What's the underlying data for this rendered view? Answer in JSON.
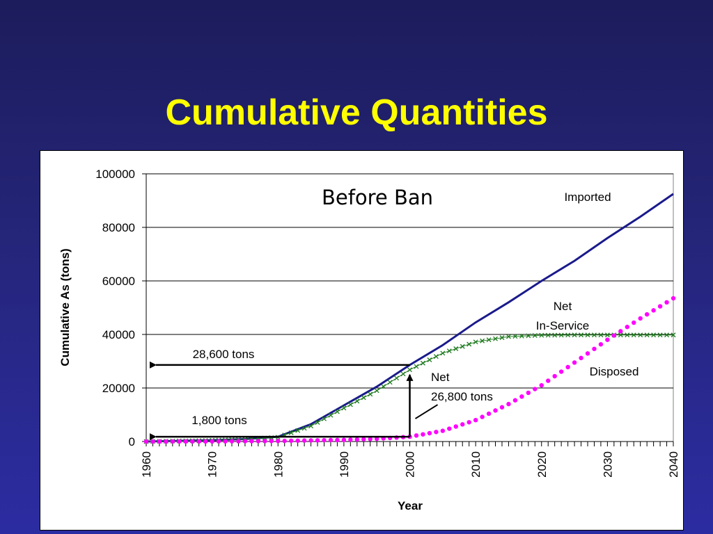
{
  "slide": {
    "title": "Cumulative Quantities"
  },
  "chart_data": {
    "type": "line",
    "title": "Before Ban",
    "xlabel": "Year",
    "ylabel": "Cumulative As (tons)",
    "xlim": [
      1960,
      2040
    ],
    "ylim": [
      0,
      100000
    ],
    "y_ticks": [
      "0",
      "20000",
      "40000",
      "60000",
      "80000",
      "100000"
    ],
    "x_ticks": [
      "1960",
      "1970",
      "1980",
      "1990",
      "2000",
      "2010",
      "2020",
      "2030",
      "2040"
    ],
    "grid": "horizontal",
    "colors": {
      "imported": "#1a1a8c",
      "net_in_service": "#1e7a1e",
      "disposed": "#ff00ff",
      "text": "#000000"
    },
    "series": [
      {
        "name": "Imported",
        "marker": "none",
        "x": [
          1960,
          1970,
          1975,
          1980,
          1985,
          1990,
          1995,
          2000,
          2005,
          2010,
          2015,
          2020,
          2025,
          2030,
          2035,
          2040
        ],
        "values": [
          0,
          500,
          900,
          1800,
          6500,
          13500,
          20500,
          28600,
          36000,
          44500,
          52000,
          60000,
          67500,
          76000,
          84000,
          92500
        ]
      },
      {
        "name": "Net In-Service",
        "marker": "x",
        "x": [
          1960,
          1970,
          1975,
          1980,
          1985,
          1990,
          1995,
          2000,
          2005,
          2010,
          2015,
          2020,
          2025,
          2030,
          2035,
          2040
        ],
        "values": [
          0,
          450,
          850,
          1600,
          5800,
          12500,
          19000,
          26800,
          33000,
          37200,
          39200,
          39700,
          39800,
          39800,
          39800,
          39800
        ]
      },
      {
        "name": "Disposed",
        "marker": "dot",
        "x": [
          1960,
          1970,
          1980,
          1990,
          1995,
          2000,
          2005,
          2010,
          2015,
          2020,
          2025,
          2030,
          2035,
          2040
        ],
        "values": [
          0,
          50,
          200,
          600,
          1000,
          1800,
          4000,
          8000,
          14000,
          21000,
          29500,
          38000,
          46000,
          53500
        ]
      }
    ],
    "annotations": [
      {
        "text": "Imported"
      },
      {
        "text": "Net"
      },
      {
        "text": "In-Service"
      },
      {
        "text": "Disposed"
      },
      {
        "text": "28,600 tons"
      },
      {
        "text": "1,800 tons"
      },
      {
        "text": "Net"
      },
      {
        "text": "26,800 tons"
      }
    ]
  }
}
